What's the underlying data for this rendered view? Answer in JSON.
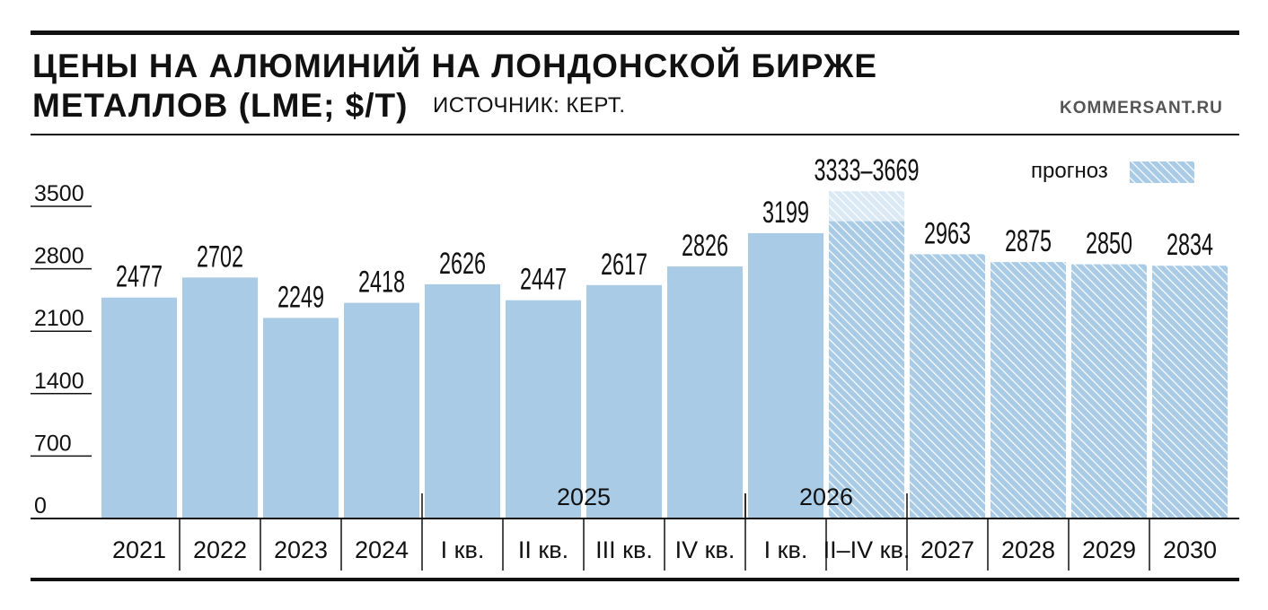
{
  "header": {
    "title_line1": "ЦЕНЫ НА АЛЮМИНИЙ НА ЛОНДОНСКОЙ БИРЖЕ",
    "title_line2": "МЕТАЛЛОВ (LME; $/T)",
    "source": "ИСТОЧНИК: КЕРТ.",
    "site": "KOMMERSANT.RU"
  },
  "colors": {
    "bar": "#a9cbe6",
    "forecast_hatch": "#ffffff",
    "axis": "#111111"
  },
  "chart_data": {
    "type": "bar",
    "title": "ЦЕНЫ НА АЛЮМИНИЙ НА ЛОНДОНСКОЙ БИРЖЕ МЕТАЛЛОВ (LME; $/T)",
    "ylim": [
      0,
      3500
    ],
    "yticks": [
      0,
      700,
      1400,
      2100,
      2800,
      3500
    ],
    "categories": [
      "2021",
      "2022",
      "2023",
      "2024",
      "I кв.",
      "II кв.",
      "III кв.",
      "IV кв.",
      "I кв.",
      "II–IV кв.",
      "2027",
      "2028",
      "2029",
      "2030"
    ],
    "values": [
      2477,
      2702,
      2249,
      2418,
      2626,
      2447,
      2617,
      2826,
      3199,
      3333,
      2963,
      2875,
      2850,
      2834
    ],
    "range_high": [
      null,
      null,
      null,
      null,
      null,
      null,
      null,
      null,
      null,
      3669,
      null,
      null,
      null,
      null
    ],
    "value_labels": [
      "2477",
      "2702",
      "2249",
      "2418",
      "2626",
      "2447",
      "2617",
      "2826",
      "3199",
      "3333–3669",
      "2963",
      "2875",
      "2850",
      "2834"
    ],
    "forecast": [
      false,
      false,
      false,
      false,
      false,
      false,
      false,
      false,
      false,
      true,
      true,
      true,
      true,
      true
    ],
    "groups": [
      {
        "label": "2025",
        "from": 4,
        "to": 7
      },
      {
        "label": "2026",
        "from": 8,
        "to": 9
      }
    ],
    "legend": {
      "label": "прогноз",
      "placement": "top-right"
    },
    "grid": false
  }
}
